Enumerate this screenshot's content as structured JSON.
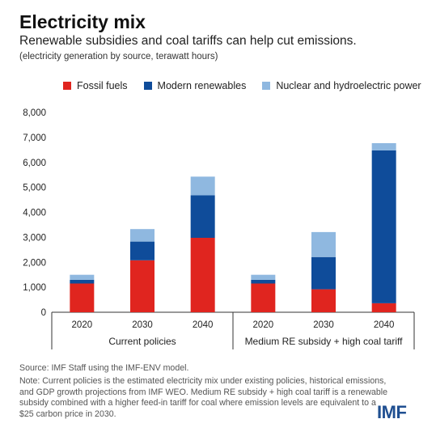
{
  "header": {
    "title": "Electricity mix",
    "subtitle": "Renewable subsidies and coal tariffs can help cut emissions.",
    "units": "(electricity generation by source, terawatt hours)"
  },
  "colors": {
    "fossil": "#e0251f",
    "modern": "#0f4c9a",
    "nuclear": "#8fb8e0"
  },
  "chart_data": {
    "type": "bar",
    "stacked": true,
    "categories": [
      "2020",
      "2030",
      "2040",
      "2020",
      "2030",
      "2040"
    ],
    "groups": [
      {
        "label": "Current policies",
        "categories": [
          "2020",
          "2030",
          "2040"
        ]
      },
      {
        "label": "Medium RE subsidy + high coal tariff",
        "categories": [
          "2020",
          "2030",
          "2040"
        ]
      }
    ],
    "series": [
      {
        "name": "Fossil fuels",
        "values": [
          1150,
          2080,
          2980,
          1150,
          920,
          360
        ]
      },
      {
        "name": "Modern renewables",
        "values": [
          150,
          750,
          1700,
          150,
          1290,
          6120
        ]
      },
      {
        "name": "Nuclear and hydroelectric power",
        "values": [
          200,
          500,
          750,
          200,
          1000,
          290
        ]
      }
    ],
    "ylim": [
      0,
      8000
    ],
    "yticks": [
      "0",
      "1,000",
      "2,000",
      "3,000",
      "4,000",
      "5,000",
      "6,000",
      "7,000",
      "8,000"
    ],
    "legend_position": "top"
  },
  "footer": {
    "source": "Source: IMF Staff using the IMF-ENV model.",
    "note": "Note: Current policies is the estimated electricity mix under existing policies, historical emissions, and GDP growth projections from IMF WEO. Medium RE subsidy + high coal tariff is a renewable subsidy combined with a higher feed-in tariff for coal where emission levels are equivalent to a $25 carbon price in 2030.",
    "logo": "IMF"
  }
}
